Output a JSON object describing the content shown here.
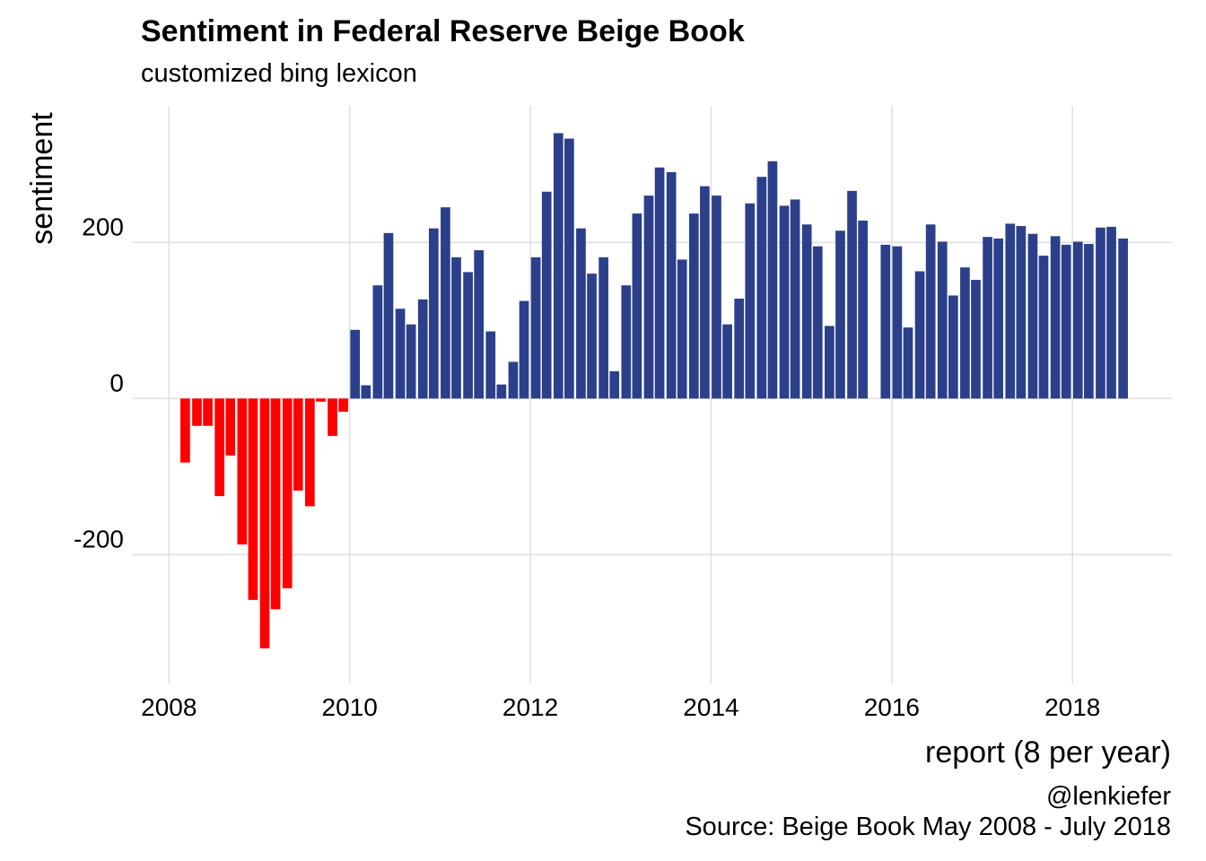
{
  "title": "Sentiment in Federal Reserve Beige Book",
  "subtitle": "customized bing lexicon",
  "caption": {
    "handle": "@lenkiefer",
    "source": "Source: Beige Book May 2008 - July 2018"
  },
  "colors": {
    "negative": "#ff0000",
    "positive": "#2b3f8a",
    "grid": "#e0e0e0"
  },
  "chart_data": {
    "type": "bar",
    "xlabel": "report (8 per year)",
    "ylabel": "sentiment",
    "xlim": [
      2007.6,
      2019.1
    ],
    "ylim": [
      -365,
      375
    ],
    "x_ticks": [
      2008,
      2010,
      2012,
      2014,
      2016,
      2018
    ],
    "x_tick_labels": [
      "2008",
      "2010",
      "2012",
      "2014",
      "2016",
      "2018"
    ],
    "y_ticks": [
      -200,
      0,
      200
    ],
    "y_tick_labels": [
      "-200",
      "0",
      "200"
    ],
    "grid": true,
    "x": [
      2008.18,
      2008.31,
      2008.43,
      2008.56,
      2008.68,
      2008.81,
      2008.93,
      2009.06,
      2009.18,
      2009.31,
      2009.43,
      2009.56,
      2009.68,
      2009.81,
      2009.93,
      2010.06,
      2010.18,
      2010.31,
      2010.43,
      2010.56,
      2010.68,
      2010.81,
      2010.93,
      2011.06,
      2011.18,
      2011.31,
      2011.43,
      2011.56,
      2011.68,
      2011.81,
      2011.93,
      2012.06,
      2012.18,
      2012.31,
      2012.43,
      2012.56,
      2012.68,
      2012.81,
      2012.93,
      2013.06,
      2013.18,
      2013.31,
      2013.43,
      2013.56,
      2013.68,
      2013.81,
      2013.93,
      2014.06,
      2014.18,
      2014.31,
      2014.43,
      2014.56,
      2014.68,
      2014.81,
      2014.93,
      2015.06,
      2015.18,
      2015.31,
      2015.43,
      2015.56,
      2015.68,
      2015.93,
      2016.06,
      2016.18,
      2016.31,
      2016.43,
      2016.56,
      2016.68,
      2016.81,
      2016.93,
      2017.06,
      2017.18,
      2017.31,
      2017.43,
      2017.56,
      2017.68,
      2017.81,
      2017.93,
      2018.06,
      2018.18,
      2018.31,
      2018.43,
      2018.56
    ],
    "values": [
      -82,
      -35,
      -35,
      -125,
      -73,
      -187,
      -258,
      -320,
      -270,
      -243,
      -118,
      -138,
      -4,
      -48,
      -17,
      88,
      17,
      145,
      212,
      115,
      95,
      127,
      218,
      245,
      181,
      162,
      190,
      86,
      18,
      47,
      125,
      181,
      265,
      340,
      333,
      218,
      160,
      181,
      35,
      145,
      237,
      260,
      296,
      290,
      178,
      237,
      272,
      260,
      95,
      128,
      250,
      284,
      304,
      247,
      255,
      223,
      195,
      93,
      215,
      266,
      228,
      197,
      195,
      91,
      163,
      223,
      201,
      132,
      168,
      152,
      207,
      205,
      224,
      221,
      211,
      183,
      208,
      197,
      201,
      198,
      219,
      220,
      205
    ]
  }
}
